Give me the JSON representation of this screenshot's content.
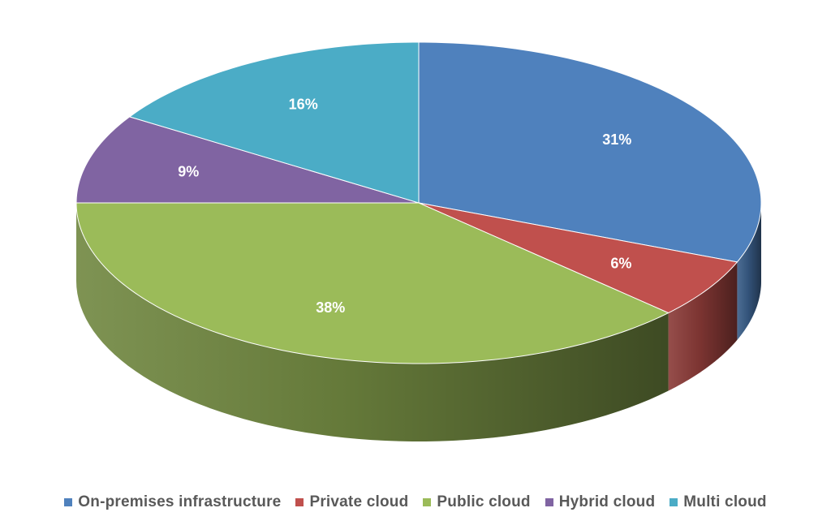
{
  "chart_data": {
    "type": "pie",
    "title": "",
    "categories": [
      "On-premises infrastructure",
      "Private cloud",
      "Public cloud",
      "Hybrid cloud",
      "Multi cloud"
    ],
    "values": [
      31,
      6,
      38,
      9,
      16
    ],
    "value_labels": [
      "31%",
      "6%",
      "38%",
      "9%",
      "16%"
    ],
    "colors": [
      "#4f81bd",
      "#c0504d",
      "#9bbb59",
      "#8064a2",
      "#4bacc6"
    ],
    "style": "3d",
    "start_angle": "12 o'clock",
    "direction": "clockwise",
    "legend_position": "bottom"
  }
}
